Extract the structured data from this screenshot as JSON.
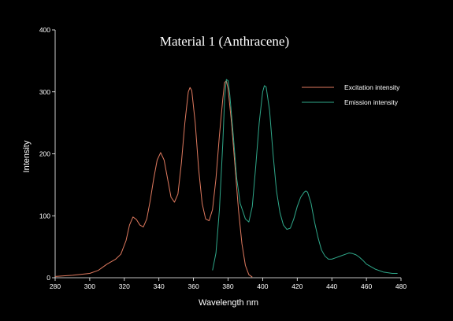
{
  "chart_data": {
    "type": "line",
    "title": "Material 1 (Anthracene)",
    "xlabel": "Wavelength nm",
    "ylabel": "Intensity",
    "xlim": [
      280,
      480
    ],
    "ylim": [
      0,
      400
    ],
    "xticks": [
      280,
      300,
      320,
      340,
      360,
      380,
      400,
      420,
      440,
      460,
      480
    ],
    "yticks": [
      0,
      100,
      200,
      300,
      400
    ],
    "grid": false,
    "legend_position": "top-right",
    "series": [
      {
        "name": "Excitation intensity",
        "color": "#e07a5f",
        "points": [
          [
            280,
            2
          ],
          [
            290,
            4
          ],
          [
            300,
            7
          ],
          [
            305,
            12
          ],
          [
            310,
            22
          ],
          [
            315,
            30
          ],
          [
            318,
            38
          ],
          [
            321,
            60
          ],
          [
            323,
            85
          ],
          [
            325,
            98
          ],
          [
            327,
            94
          ],
          [
            329,
            85
          ],
          [
            331,
            82
          ],
          [
            333,
            95
          ],
          [
            335,
            125
          ],
          [
            337,
            160
          ],
          [
            339,
            190
          ],
          [
            341,
            202
          ],
          [
            343,
            190
          ],
          [
            345,
            160
          ],
          [
            347,
            130
          ],
          [
            349,
            122
          ],
          [
            351,
            135
          ],
          [
            353,
            185
          ],
          [
            355,
            250
          ],
          [
            357,
            300
          ],
          [
            358,
            307
          ],
          [
            359,
            302
          ],
          [
            361,
            250
          ],
          [
            363,
            175
          ],
          [
            365,
            120
          ],
          [
            367,
            95
          ],
          [
            369,
            92
          ],
          [
            371,
            110
          ],
          [
            373,
            160
          ],
          [
            375,
            230
          ],
          [
            377,
            290
          ],
          [
            378,
            315
          ],
          [
            379,
            318
          ],
          [
            380,
            305
          ],
          [
            382,
            250
          ],
          [
            384,
            180
          ],
          [
            386,
            110
          ],
          [
            388,
            55
          ],
          [
            390,
            20
          ],
          [
            392,
            5
          ],
          [
            394,
            1
          ]
        ]
      },
      {
        "name": "Emission intensity",
        "color": "#2fa88a",
        "points": [
          [
            371,
            12
          ],
          [
            373,
            40
          ],
          [
            375,
            110
          ],
          [
            377,
            220
          ],
          [
            378,
            290
          ],
          [
            379,
            320
          ],
          [
            380,
            318
          ],
          [
            381,
            295
          ],
          [
            383,
            230
          ],
          [
            385,
            160
          ],
          [
            387,
            120
          ],
          [
            390,
            95
          ],
          [
            392,
            90
          ],
          [
            394,
            115
          ],
          [
            396,
            180
          ],
          [
            398,
            250
          ],
          [
            400,
            300
          ],
          [
            401,
            310
          ],
          [
            402,
            308
          ],
          [
            404,
            270
          ],
          [
            406,
            200
          ],
          [
            408,
            140
          ],
          [
            410,
            105
          ],
          [
            412,
            85
          ],
          [
            414,
            78
          ],
          [
            416,
            80
          ],
          [
            418,
            95
          ],
          [
            420,
            115
          ],
          [
            422,
            130
          ],
          [
            424,
            138
          ],
          [
            425,
            140
          ],
          [
            426,
            138
          ],
          [
            428,
            120
          ],
          [
            430,
            90
          ],
          [
            432,
            65
          ],
          [
            434,
            45
          ],
          [
            436,
            35
          ],
          [
            438,
            30
          ],
          [
            440,
            30
          ],
          [
            442,
            32
          ],
          [
            444,
            34
          ],
          [
            446,
            36
          ],
          [
            448,
            38
          ],
          [
            450,
            40
          ],
          [
            452,
            39
          ],
          [
            454,
            37
          ],
          [
            456,
            33
          ],
          [
            458,
            28
          ],
          [
            460,
            22
          ],
          [
            465,
            14
          ],
          [
            470,
            9
          ],
          [
            475,
            7
          ],
          [
            478,
            7
          ]
        ]
      }
    ]
  }
}
